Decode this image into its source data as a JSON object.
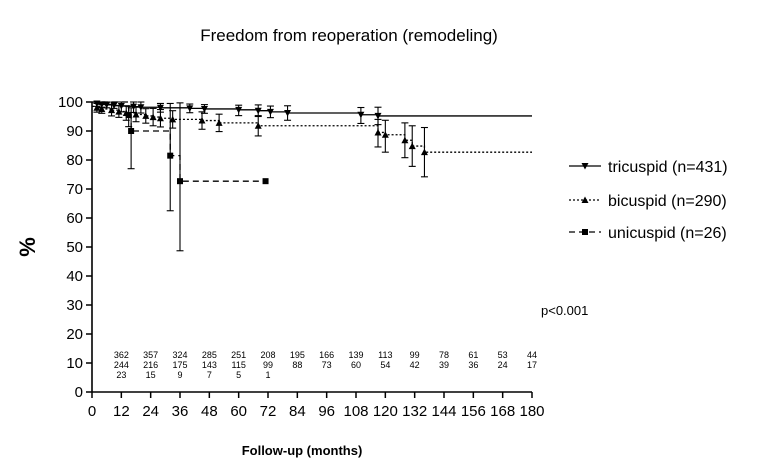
{
  "chart_data": {
    "type": "line",
    "title": "Freedom from reoperation (remodeling)",
    "xlabel": "Follow-up (months)",
    "ylabel": "%",
    "xlim": [
      0,
      180
    ],
    "ylim": [
      0,
      100
    ],
    "xticks": [
      "0",
      "12",
      "24",
      "36",
      "48",
      "60",
      "72",
      "84",
      "96",
      "108",
      "120",
      "132",
      "144",
      "156",
      "168",
      "180"
    ],
    "yticks": [
      "0",
      "10",
      "20",
      "30",
      "40",
      "50",
      "60",
      "70",
      "80",
      "90",
      "100"
    ],
    "grid": false,
    "legend_position": "right",
    "annotation": "p<0.001",
    "series": [
      {
        "name": "tricuspid (n=431)",
        "marker": "triangle-down",
        "line_style": "solid",
        "x": [
          0,
          2,
          4,
          6,
          9,
          12,
          17,
          20,
          28,
          40,
          46,
          60,
          68,
          73,
          80,
          110,
          117,
          180
        ],
        "y": [
          100,
          99.5,
          99.2,
          99,
          98.8,
          98.6,
          98.4,
          98.2,
          98,
          97.8,
          97.6,
          97.3,
          97,
          96.6,
          96.2,
          95.6,
          95.2,
          95.2
        ],
        "err_low": [
          null,
          1,
          1,
          1,
          1,
          2,
          2,
          2,
          1.5,
          1.5,
          1.5,
          2,
          2,
          2,
          2.5,
          3,
          3,
          null
        ],
        "err_high": [
          null,
          0.5,
          0.8,
          1,
          1.2,
          1.4,
          1.6,
          1.8,
          1.5,
          1.5,
          1.5,
          1.6,
          2,
          2,
          2.5,
          2.5,
          3,
          null
        ]
      },
      {
        "name": "bicuspid (n=290)",
        "marker": "triangle-up",
        "line_style": "dotted",
        "x": [
          0,
          2,
          4,
          8,
          11,
          14,
          18,
          22,
          25,
          28,
          33,
          45,
          52,
          68,
          117,
          120,
          128,
          131,
          136,
          180
        ],
        "y": [
          98.5,
          98,
          97.6,
          97.2,
          96.7,
          96.2,
          95.7,
          95.2,
          94.8,
          94.4,
          94,
          93.6,
          92.8,
          91.8,
          89.5,
          88.7,
          86.8,
          84.8,
          82.7,
          82.7
        ],
        "err_low": [
          null,
          1.5,
          1.5,
          2,
          2,
          2.5,
          2.5,
          2.5,
          3,
          3,
          3,
          3,
          3,
          3.5,
          5,
          6,
          6,
          7,
          8.5,
          null
        ],
        "err_high": [
          null,
          1.5,
          1.5,
          2,
          2,
          2.5,
          2.5,
          2.5,
          3,
          3,
          3,
          3,
          3,
          3.5,
          4.5,
          5,
          6,
          7,
          8.5,
          null
        ]
      },
      {
        "name": "unicuspid (n=26)",
        "marker": "square",
        "line_style": "dashed",
        "x": [
          0,
          15,
          16,
          32,
          36,
          71
        ],
        "y": [
          100,
          95.5,
          90,
          81.5,
          72.7,
          72.7
        ],
        "err_low": [
          null,
          4,
          13,
          19,
          24,
          null
        ],
        "err_high": [
          null,
          3,
          8,
          18,
          27,
          null
        ]
      }
    ],
    "risk_table": {
      "x": [
        12,
        24,
        36,
        48,
        60,
        72,
        84,
        96,
        108,
        120,
        132,
        144,
        156,
        168,
        180
      ],
      "rows": [
        [
          "362",
          "357",
          "324",
          "285",
          "251",
          "208",
          "195",
          "166",
          "139",
          "113",
          "99",
          "78",
          "61",
          "53",
          "44"
        ],
        [
          "244",
          "216",
          "175",
          "143",
          "115",
          "99",
          "88",
          "73",
          "60",
          "54",
          "42",
          "39",
          "36",
          "24",
          "17"
        ],
        [
          "23",
          "15",
          "9",
          "7",
          "5",
          "1",
          "",
          "",
          "",
          "",
          "",
          "",
          "",
          "",
          ""
        ]
      ]
    }
  }
}
